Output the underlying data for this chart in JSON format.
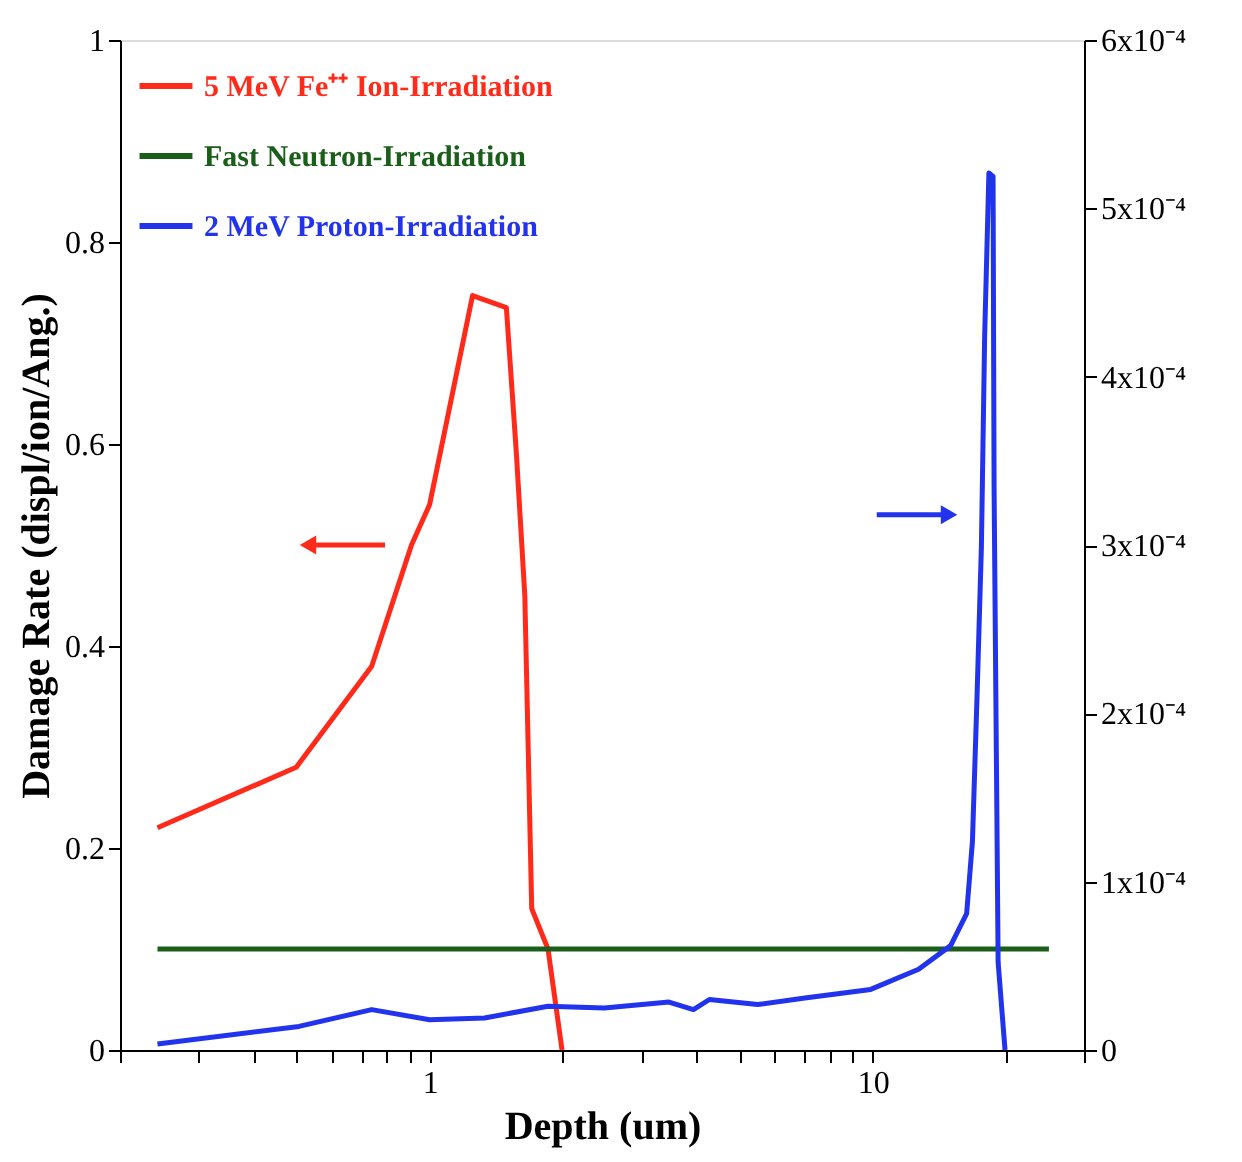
{
  "chart_data": {
    "type": "line",
    "xlabel": "Depth (um)",
    "ylabel": "Damage Rate (displ/ion/Ang.)",
    "log": "x",
    "grid": false,
    "legend": "top left",
    "marker": "none",
    "line_style": "solid",
    "xlim": [
      0.2,
      30
    ],
    "xticks": [
      {
        "value": 0.2,
        "label": null
      },
      {
        "value": 0.3,
        "label": null
      },
      {
        "value": 0.4,
        "label": null
      },
      {
        "value": 0.5,
        "label": null
      },
      {
        "value": 0.6,
        "label": null
      },
      {
        "value": 0.7,
        "label": null
      },
      {
        "value": 0.8,
        "label": null
      },
      {
        "value": 0.9,
        "label": null
      },
      1,
      {
        "value": 2,
        "label": null
      },
      {
        "value": 3,
        "label": null
      },
      {
        "value": 4,
        "label": null
      },
      {
        "value": 5,
        "label": null
      },
      {
        "value": 6,
        "label": null
      },
      {
        "value": 7,
        "label": null
      },
      {
        "value": 8,
        "label": null
      },
      {
        "value": 9,
        "label": null
      },
      10,
      {
        "value": 20,
        "label": null
      },
      {
        "value": 30,
        "label": null
      }
    ],
    "ylim": [
      0,
      1
    ],
    "yticks": [
      0,
      0.2,
      0.4,
      0.6,
      0.8,
      1
    ],
    "y2lim": [
      0,
      0.0006
    ],
    "y2ticks": [
      0,
      {
        "value": 0.0001,
        "label": "1x10⁻⁴"
      },
      {
        "value": 0.0002,
        "label": "2x10⁻⁴"
      },
      {
        "value": 0.0003,
        "label": "3x10⁻⁴"
      },
      {
        "value": 0.0004,
        "label": "4x10⁻⁴"
      },
      {
        "value": 0.0005,
        "label": "5x10⁻⁴"
      },
      {
        "value": 0.0006,
        "label": "6x10⁻⁴"
      }
    ],
    "series": [
      {
        "name": "5 MeV Fe⁺⁺ Ion-Irradiation",
        "color": "#ff2a1a",
        "axis": "y",
        "x": [
          0.243,
          0.5,
          0.74,
          0.91,
          1.0,
          1.25,
          1.49,
          1.57,
          1.64,
          1.7,
          1.85,
          1.99
        ],
        "values": [
          0.22,
          0.28,
          0.38,
          0.5,
          0.54,
          0.747,
          0.735,
          0.59,
          0.45,
          0.14,
          0.1,
          0
        ]
      },
      {
        "name": "Fast Neutron-Irradiation",
        "color": "#1a5e1a",
        "axis": "y",
        "x": [
          0.243,
          25
        ],
        "values": [
          0.1,
          0.1
        ]
      },
      {
        "name": "2 MeV Proton-Irradiation",
        "color": "#2233ee",
        "axis": "y2",
        "x": [
          0.243,
          0.507,
          0.74,
          1.0,
          1.33,
          1.85,
          2.48,
          3.47,
          3.94,
          4.28,
          5.5,
          7.1,
          9.9,
          12.7,
          15.0,
          16.3,
          16.8,
          17.2,
          17.6,
          17.9,
          18.3,
          18.7,
          18.8,
          19.2,
          19.9
        ],
        "values": [
          3.6e-06,
          1.4e-05,
          2.4e-05,
          1.8e-05,
          1.9e-05,
          2.6e-05,
          2.5e-05,
          2.85e-05,
          2.4e-05,
          3e-05,
          2.7e-05,
          3.1e-05,
          3.6e-05,
          4.8e-05,
          6.2e-05,
          8.1e-05,
          0.000124,
          0.000209,
          0.000299,
          0.000424,
          0.000521,
          0.000519,
          0.000334,
          5.2e-05,
          0
        ]
      }
    ]
  }
}
